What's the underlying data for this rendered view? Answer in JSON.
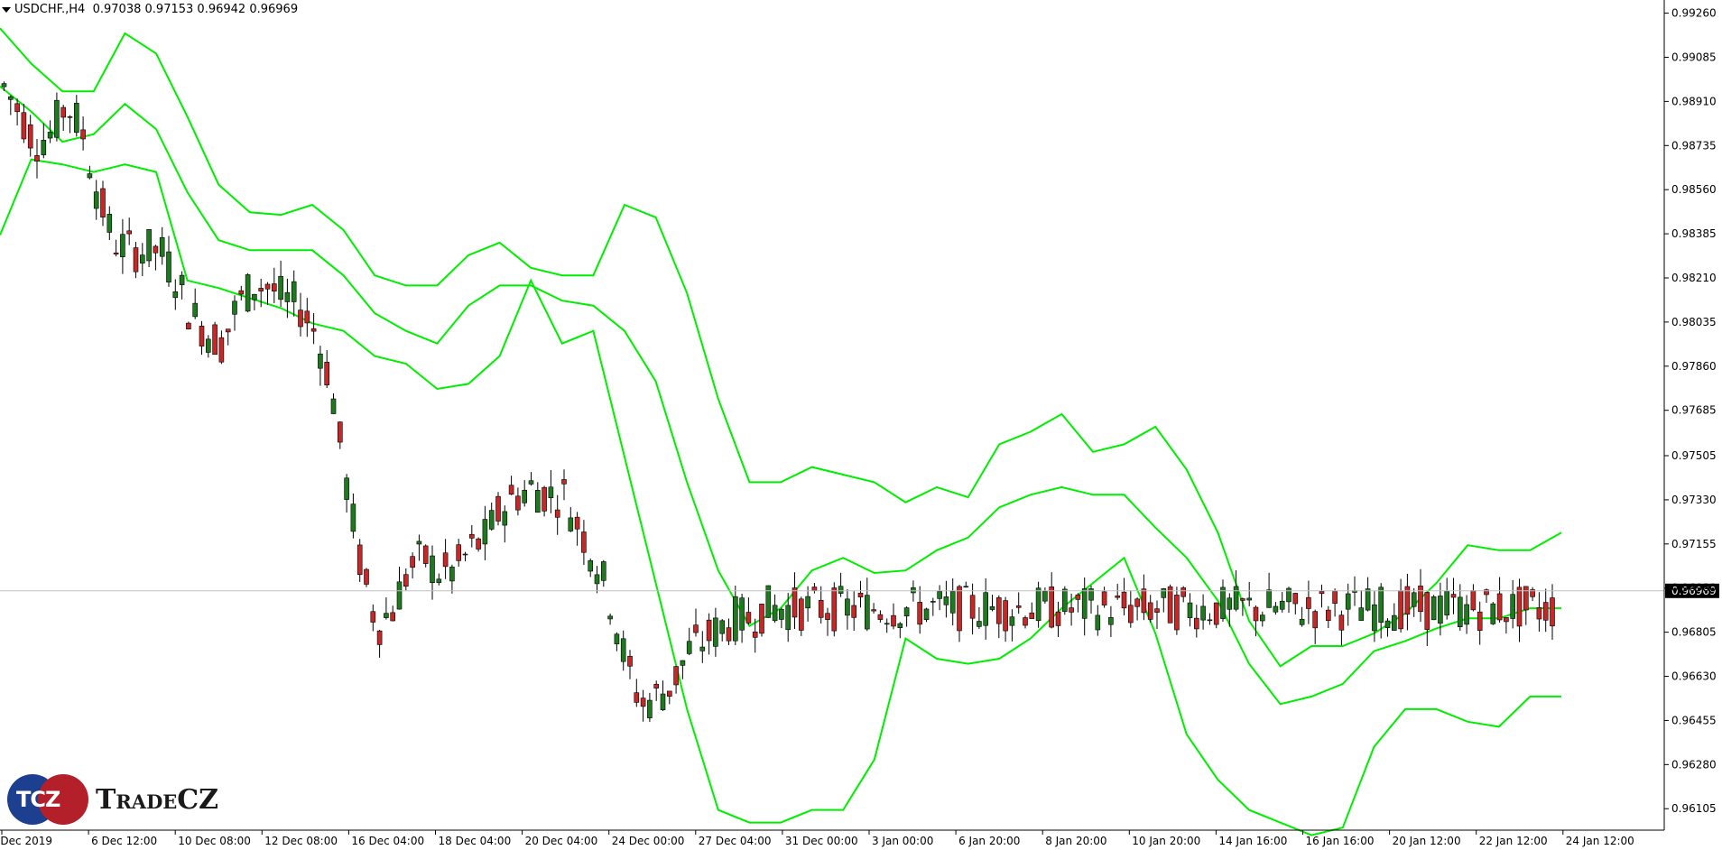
{
  "header": {
    "symbol": "USDCHF.,H4",
    "open": "0.97038",
    "high": "0.97153",
    "low": "0.96942",
    "close": "0.96969"
  },
  "logo": {
    "mark": "TCZ",
    "text": "TradeCZ"
  },
  "colors": {
    "bull": "#1e7a1e",
    "bear": "#c62828",
    "wick": "#000000",
    "bands": "#00ee00",
    "price_line": "#c0c0c0",
    "axis": "#000000"
  },
  "chart_data": {
    "type": "candlestick",
    "symbol": "USDCHF.",
    "timeframe": "H4",
    "ylim": [
      0.9602,
      0.99305
    ],
    "y_ticks": [
      "0.99260",
      "0.99085",
      "0.98910",
      "0.98735",
      "0.98560",
      "0.98385",
      "0.98210",
      "0.98035",
      "0.97860",
      "0.97685",
      "0.97505",
      "0.97330",
      "0.97155",
      "0.96980",
      "0.96805",
      "0.96630",
      "0.96455",
      "0.96280",
      "0.96105"
    ],
    "x_ticks": [
      "Dec 2019",
      "6 Dec 12:00",
      "10 Dec 08:00",
      "12 Dec 08:00",
      "16 Dec 04:00",
      "18 Dec 04:00",
      "20 Dec 04:00",
      "24 Dec 00:00",
      "27 Dec 04:00",
      "31 Dec 00:00",
      "3 Jan 00:00",
      "6 Jan 20:00",
      "8 Jan 20:00",
      "10 Jan 20:00",
      "14 Jan 16:00",
      "16 Jan 16:00",
      "20 Jan 12:00",
      "22 Jan 12:00",
      "24 Jan 12:00"
    ],
    "current_price": "0.96969",
    "bands_upper": [
      0.992,
      0.9906,
      0.9895,
      0.9895,
      0.9918,
      0.991,
      0.9885,
      0.9858,
      0.9847,
      0.9846,
      0.985,
      0.984,
      0.9822,
      0.9818,
      0.9818,
      0.983,
      0.9835,
      0.9825,
      0.9822,
      0.9822,
      0.985,
      0.9845,
      0.9815,
      0.9773,
      0.974,
      0.974,
      0.9746,
      0.9743,
      0.974,
      0.9732,
      0.9738,
      0.9734,
      0.9755,
      0.976,
      0.9767,
      0.9752,
      0.9755,
      0.9762,
      0.9745,
      0.972,
      0.9685,
      0.9667,
      0.9675,
      0.9675,
      0.968,
      0.9688,
      0.97,
      0.9715,
      0.9713,
      0.9713,
      0.972
    ],
    "bands_middle": [
      0.9897,
      0.9887,
      0.9875,
      0.9878,
      0.989,
      0.988,
      0.9855,
      0.9836,
      0.9832,
      0.9832,
      0.9832,
      0.9822,
      0.9807,
      0.98,
      0.9795,
      0.981,
      0.9818,
      0.9818,
      0.9812,
      0.981,
      0.98,
      0.978,
      0.974,
      0.9705,
      0.9683,
      0.969,
      0.9705,
      0.971,
      0.9704,
      0.9705,
      0.9713,
      0.9718,
      0.973,
      0.9735,
      0.9738,
      0.9735,
      0.9735,
      0.9722,
      0.971,
      0.9693,
      0.9668,
      0.9652,
      0.9655,
      0.966,
      0.9673,
      0.9677,
      0.9682,
      0.9686,
      0.9686,
      0.969,
      0.969
    ],
    "bands_lower": [
      0.9838,
      0.9868,
      0.9866,
      0.9863,
      0.9866,
      0.9863,
      0.982,
      0.9817,
      0.9813,
      0.9809,
      0.9803,
      0.98,
      0.979,
      0.9787,
      0.9777,
      0.9779,
      0.979,
      0.982,
      0.9795,
      0.98,
      0.975,
      0.97,
      0.965,
      0.961,
      0.9605,
      0.9605,
      0.961,
      0.961,
      0.963,
      0.9678,
      0.967,
      0.9668,
      0.967,
      0.9678,
      0.969,
      0.97,
      0.971,
      0.968,
      0.964,
      0.9622,
      0.961,
      0.9605,
      0.96,
      0.9603,
      0.9635,
      0.965,
      0.965,
      0.9645,
      0.9643,
      0.9655,
      0.9655
    ]
  }
}
